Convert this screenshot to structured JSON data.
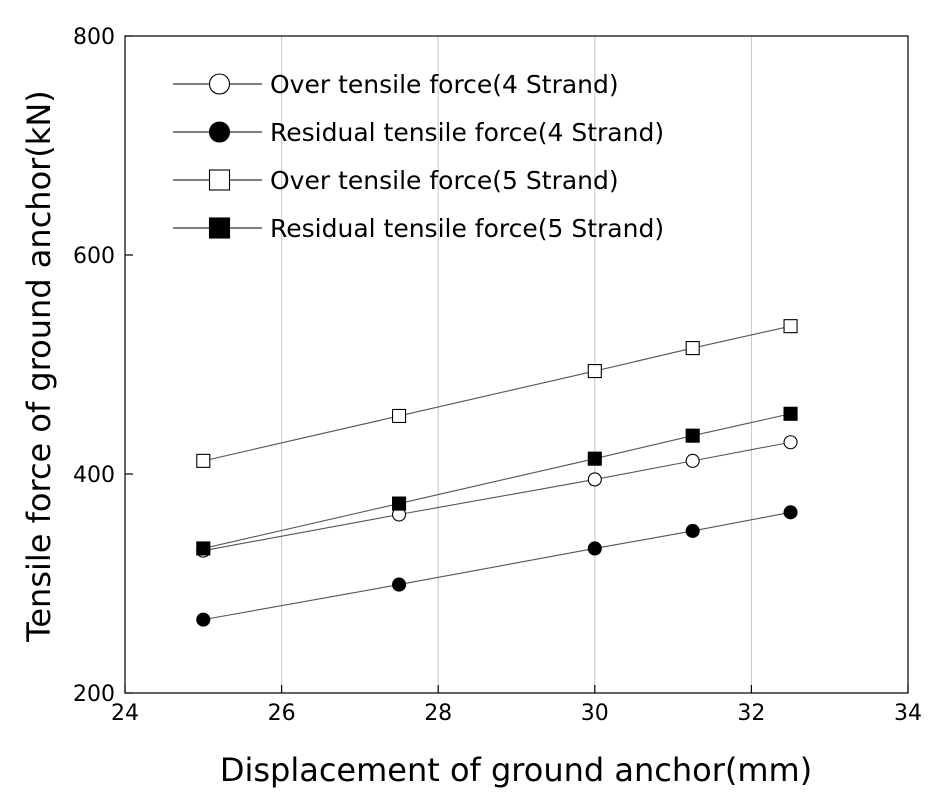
{
  "chart_data": {
    "type": "line",
    "title": "",
    "xlabel": "Displacement of ground anchor(mm)",
    "ylabel": "Tensile force of ground anchor(kN)",
    "xlim": [
      24,
      34
    ],
    "ylim": [
      200,
      800
    ],
    "xticks": [
      24,
      26,
      28,
      30,
      32,
      34
    ],
    "yticks": [
      200,
      400,
      600,
      800
    ],
    "grid": "vertical",
    "legend_position": "top-left",
    "line_color": "#555555",
    "series": [
      {
        "name": "Over tensile force(4 Strand)",
        "marker": "circle-open",
        "x": [
          25,
          27.5,
          30,
          31.25,
          32.5
        ],
        "y": [
          330,
          363,
          395,
          412,
          429
        ]
      },
      {
        "name": "Residual tensile force(4 Strand)",
        "marker": "circle-filled",
        "x": [
          25,
          27.5,
          30,
          31.25,
          32.5
        ],
        "y": [
          267,
          299,
          332,
          348,
          365
        ]
      },
      {
        "name": "Over tensile force(5 Strand)",
        "marker": "square-open",
        "x": [
          25,
          27.5,
          30,
          31.25,
          32.5
        ],
        "y": [
          412,
          453,
          494,
          515,
          535
        ]
      },
      {
        "name": "Residual tensile force(5 Strand)",
        "marker": "square-filled",
        "x": [
          25,
          27.5,
          30,
          31.25,
          32.5
        ],
        "y": [
          332,
          373,
          414,
          435,
          455
        ]
      }
    ]
  }
}
